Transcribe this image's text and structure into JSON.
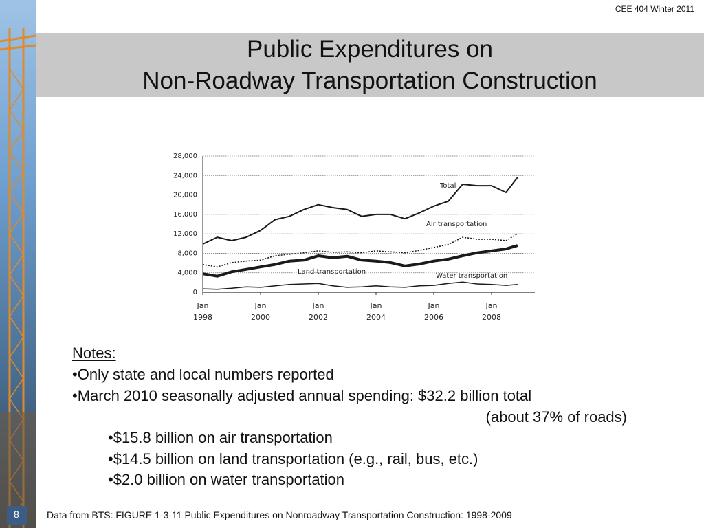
{
  "header": {
    "course": "CEE 404 Winter 2011",
    "title": [
      "Public Expenditures on",
      "Non-Roadway Transportation Construction"
    ]
  },
  "chart_data": {
    "type": "line",
    "x": [
      1998,
      1998.5,
      1999,
      1999.5,
      2000,
      2000.5,
      2001,
      2001.5,
      2002,
      2002.5,
      2003,
      2003.5,
      2004,
      2004.5,
      2005,
      2005.5,
      2006,
      2006.5,
      2007,
      2007.5,
      2008,
      2008.5,
      2008.9
    ],
    "series": [
      {
        "name": "Total",
        "color": "#1a1a1a",
        "values": [
          9900,
          11300,
          10600,
          11300,
          12700,
          14900,
          15600,
          17000,
          18000,
          17400,
          17000,
          15600,
          16000,
          16000,
          15100,
          16300,
          17700,
          18700,
          22200,
          21900,
          21900,
          20500,
          23600
        ]
      },
      {
        "name": "Air transportation",
        "color": "#1a1a1a",
        "values": [
          5700,
          5200,
          6100,
          6400,
          6600,
          7500,
          7800,
          8100,
          8500,
          8200,
          8300,
          8100,
          8500,
          8300,
          8100,
          8600,
          9200,
          9800,
          11300,
          10900,
          10900,
          10600,
          12000
        ]
      },
      {
        "name": "Land transportation",
        "color": "#1a1a1a",
        "values": [
          3800,
          3300,
          4200,
          4700,
          5200,
          5700,
          6400,
          6600,
          7500,
          7100,
          7400,
          6600,
          6400,
          6100,
          5400,
          5800,
          6400,
          6800,
          7500,
          8100,
          8500,
          8900,
          9600
        ]
      },
      {
        "name": "Water transportation",
        "color": "#1a1a1a",
        "values": [
          700,
          600,
          800,
          1100,
          1000,
          1300,
          1600,
          1700,
          1800,
          1300,
          1000,
          1100,
          1300,
          1100,
          1000,
          1300,
          1400,
          1800,
          2100,
          1700,
          1600,
          1400,
          1600
        ]
      }
    ],
    "xlim": [
      1998,
      2009.5
    ],
    "xticks": [
      {
        "value": 1998,
        "label": "Jan 1998"
      },
      {
        "value": 2000,
        "label": "Jan 2000"
      },
      {
        "value": 2002,
        "label": "Jan 2002"
      },
      {
        "value": 2004,
        "label": "Jan 2004"
      },
      {
        "value": 2006,
        "label": "Jan 2006"
      },
      {
        "value": 2008,
        "label": "Jan 2008"
      }
    ],
    "ylim": [
      0,
      28000
    ],
    "yticks": [
      0,
      {
        "value": 4000,
        "label": "4,000"
      },
      {
        "value": 8000,
        "label": "8,000"
      },
      {
        "value": 12000,
        "label": "12,000"
      },
      {
        "value": 16000,
        "label": "16,000"
      },
      {
        "value": 20000,
        "label": "20,000"
      },
      {
        "value": 24000,
        "label": "24,000"
      },
      {
        "value": 28000,
        "label": "28,000"
      }
    ],
    "grid": true
  },
  "notes": {
    "heading": "Notes:",
    "items": [
      "•Only state and local numbers reported",
      "•March 2010 seasonally adjusted annual spending: $32.2 billion total"
    ],
    "continuation": "(about 37% of roads)",
    "subitems": [
      "•$15.8 billion on air transportation",
      "•$14.5 billion on land transportation (e.g., rail, bus, etc.)",
      "•$2.0 billion on water transportation"
    ]
  },
  "footer": {
    "page": "8",
    "source": "Data from BTS: FIGURE 1-3-11 Public Expenditures on Nonroadway Transportation Construction: 1998-2009"
  }
}
